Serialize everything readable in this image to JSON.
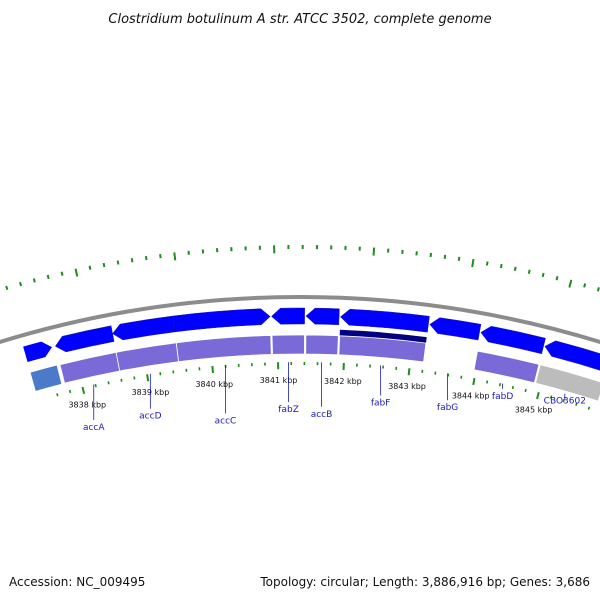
{
  "title": "Clostridium botulinum A str. ATCC 3502, complete genome",
  "footer": {
    "accession": "Accession: NC_009495",
    "summary": "Topology: circular; Length: 3,886,916 bp; Genes: 3,686"
  },
  "colors": {
    "backbone": "#8c8c8c",
    "gene_forward": "#0000ff",
    "gene_dark": "#000080",
    "cds_purple": "#7a6ad8",
    "cds_gray": "#bcbcbc",
    "cds_partial": "#4a7ac8",
    "gc_tick": "#1e8c1e",
    "gene_label": "#1a1ab4"
  },
  "scale": {
    "unit": "kbp",
    "ticks": [
      {
        "value": 3838,
        "label": "3838 kbp"
      },
      {
        "value": 3839,
        "label": "3839 kbp"
      },
      {
        "value": 3840,
        "label": "3840 kbp"
      },
      {
        "value": 3841,
        "label": "3841 kbp"
      },
      {
        "value": 3842,
        "label": "3842 kbp"
      },
      {
        "value": 3843,
        "label": "3843 kbp"
      },
      {
        "value": 3844,
        "label": "3844 kbp"
      },
      {
        "value": 3845,
        "label": "3845 kbp"
      }
    ]
  },
  "genes": [
    {
      "name": "accA",
      "start": 3837.75,
      "end": 3838.6,
      "strand": "-",
      "cds": "purple"
    },
    {
      "name": "accD",
      "start": 3838.6,
      "end": 3839.5,
      "strand": "-",
      "cds": "purple"
    },
    {
      "name": "accC",
      "start": 3839.5,
      "end": 3840.9,
      "strand": "+",
      "cds": "purple"
    },
    {
      "name": "fabZ",
      "start": 3840.92,
      "end": 3841.4,
      "strand": "-",
      "cds": "purple"
    },
    {
      "name": "accB",
      "start": 3841.42,
      "end": 3841.9,
      "strand": "-",
      "cds": "purple"
    },
    {
      "name": "fabF",
      "start": 3841.92,
      "end": 3843.2,
      "strand": "-",
      "cds": "purple",
      "dark_band": true
    },
    {
      "name": "fabG",
      "start": 3843.22,
      "end": 3843.95,
      "strand": "-",
      "cds": "none"
    },
    {
      "name": "fabD",
      "start": 3843.97,
      "end": 3844.9,
      "strand": "-",
      "cds": "purple"
    },
    {
      "name": "CBO3602",
      "start": 3844.92,
      "end": 3845.9,
      "strand": "-",
      "cds": "gray"
    }
  ]
}
